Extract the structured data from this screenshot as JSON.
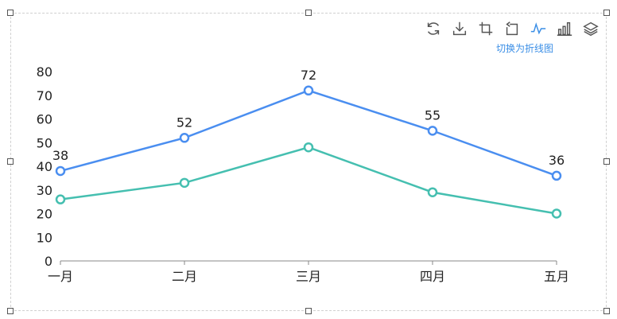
{
  "toolbox": {
    "items": [
      {
        "name": "restore-icon"
      },
      {
        "name": "download-icon"
      },
      {
        "name": "zoom-select-icon"
      },
      {
        "name": "zoom-back-icon"
      },
      {
        "name": "line-chart-icon",
        "active": true
      },
      {
        "name": "bar-chart-icon"
      },
      {
        "name": "stack-icon"
      }
    ],
    "tooltip": "切换为折线图"
  },
  "colors": {
    "series1": "#4a8ef0",
    "series2": "#45bfb0",
    "tool_active": "#3a8ee6",
    "tool": "#555555",
    "axis": "#888888"
  },
  "chart_data": {
    "type": "line",
    "categories": [
      "一月",
      "二月",
      "三月",
      "四月",
      "五月"
    ],
    "ylim": [
      0,
      80
    ],
    "yticks": [
      0,
      10,
      20,
      30,
      40,
      50,
      60,
      70,
      80
    ],
    "grid": false,
    "series": [
      {
        "values": [
          38,
          52,
          72,
          55,
          36
        ],
        "show_labels": true
      },
      {
        "values": [
          26,
          33,
          48,
          29,
          20
        ],
        "show_labels": false
      }
    ]
  }
}
